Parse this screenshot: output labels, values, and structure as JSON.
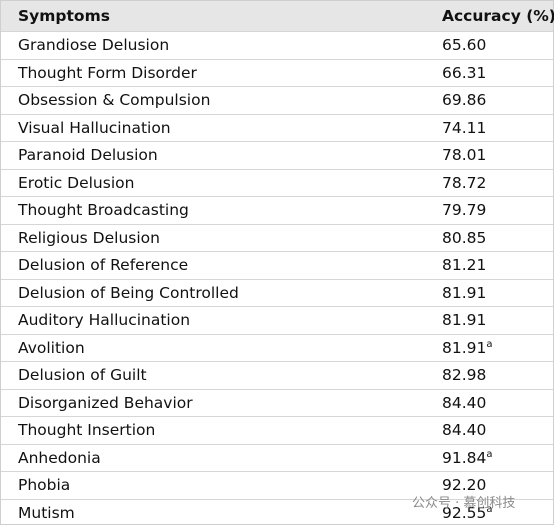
{
  "table": {
    "header": [
      "Symptoms",
      "Accuracy (%)"
    ],
    "rows": [
      {
        "symptom": "Grandiose Delusion",
        "accuracy": "65.60"
      },
      {
        "symptom": "Thought Form Disorder",
        "accuracy": "66.31"
      },
      {
        "symptom": "Obsession & Compulsion",
        "accuracy": "69.86"
      },
      {
        "symptom": "Visual Hallucination",
        "accuracy": "74.11"
      },
      {
        "symptom": "Paranoid Delusion",
        "accuracy": "78.01"
      },
      {
        "symptom": "Erotic Delusion",
        "accuracy": "78.72"
      },
      {
        "symptom": "Thought Broadcasting",
        "accuracy": "79.79"
      },
      {
        "symptom": "Religious Delusion",
        "accuracy": "80.85"
      },
      {
        "symptom": "Delusion of Reference",
        "accuracy": "81.21"
      },
      {
        "symptom": "Delusion of Being Controlled",
        "accuracy": "81.91"
      },
      {
        "symptom": "Auditory Hallucination",
        "accuracy": "81.91"
      },
      {
        "symptom": "Avolition",
        "accuracy": "81.91",
        "note": "a"
      },
      {
        "symptom": "Delusion of Guilt",
        "accuracy": "82.98"
      },
      {
        "symptom": "Disorganized Behavior",
        "accuracy": "84.40"
      },
      {
        "symptom": "Thought Insertion",
        "accuracy": "84.40"
      },
      {
        "symptom": "Anhedonia",
        "accuracy": "91.84",
        "note": "a"
      },
      {
        "symptom": "Phobia",
        "accuracy": "92.20"
      },
      {
        "symptom": "Mutism",
        "accuracy": "92.55",
        "note": "a"
      }
    ]
  },
  "watermark": "公众号 · 慕创科技"
}
